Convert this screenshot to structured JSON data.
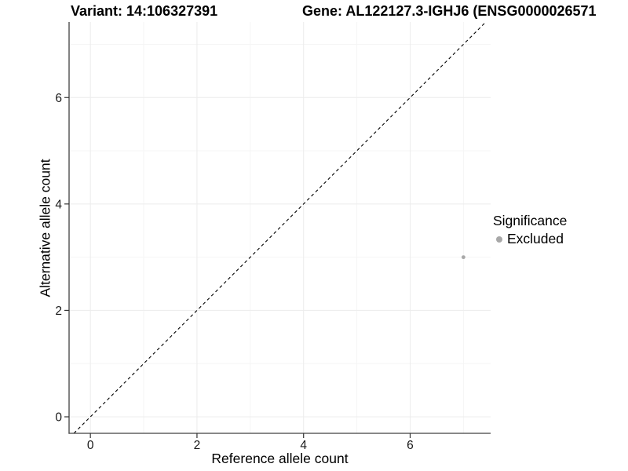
{
  "chart_data": {
    "type": "scatter",
    "title_left": "Variant: 14:106327391",
    "title_right": "Gene: AL122127.3-IGHJ6 (ENSG0000026571",
    "xlabel": "Reference allele count",
    "ylabel": "Alternative allele count",
    "xlim": [
      -0.4,
      7.51
    ],
    "ylim": [
      -0.31,
      7.42
    ],
    "x_ticks": [
      0,
      2,
      4,
      6
    ],
    "y_ticks": [
      0,
      2,
      4,
      6
    ],
    "x_minor_ticks": [
      1,
      3,
      5,
      7
    ],
    "y_minor_ticks": [
      1,
      3,
      5,
      7
    ],
    "grid": "major+minor",
    "series": [
      {
        "name": "Excluded",
        "color": "#a8a8a8",
        "points": [
          {
            "x": 7,
            "y": 3
          }
        ]
      }
    ],
    "reference_line": {
      "kind": "identity",
      "slope": 1,
      "intercept": 0,
      "style": "dashed",
      "color": "#000000"
    },
    "legend": {
      "title": "Significance",
      "position": "right",
      "items": [
        {
          "label": "Excluded",
          "color": "#a8a8a8"
        }
      ]
    },
    "colors": {
      "grid_major": "#ececec",
      "grid_minor": "#f5f5f5",
      "axis": "#404040",
      "tick": "#333333",
      "tick_text": "#1a1a1a"
    }
  }
}
